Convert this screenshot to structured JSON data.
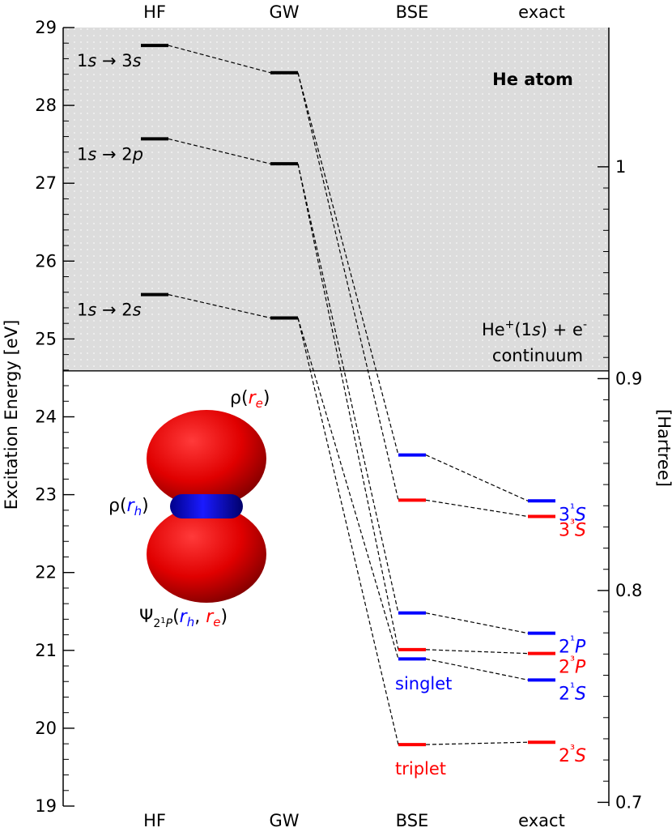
{
  "chart_data": {
    "type": "energy-level-diagram",
    "title": "He atom",
    "ylabel_left": "Excitation Energy [eV]",
    "ylabel_right": "[Hartree]",
    "ylim": [
      19,
      29
    ],
    "yticks_left": [
      19,
      20,
      21,
      22,
      23,
      24,
      25,
      26,
      27,
      28,
      29
    ],
    "yticks_right_hartree": [
      0.7,
      0.8,
      0.9,
      1
    ],
    "columns": [
      "HF",
      "GW",
      "BSE",
      "exact"
    ],
    "continuum_onset_ev": 24.59,
    "continuum_label": [
      "He+(1s) + e-",
      "continuum"
    ],
    "colors": {
      "singlet": "#0000ff",
      "triplet": "#ff0000",
      "neutral": "#000000",
      "shade": "#dcdcdc"
    },
    "series": [
      {
        "name": "HF",
        "levels": [
          {
            "id": "hf-3s",
            "energy": 28.77,
            "label": "1s → 3s"
          },
          {
            "id": "hf-2p",
            "energy": 27.57,
            "label": "1s → 2p"
          },
          {
            "id": "hf-2s",
            "energy": 25.57,
            "label": "1s → 2s"
          }
        ]
      },
      {
        "name": "GW",
        "levels": [
          {
            "id": "gw-3s",
            "energy": 28.42
          },
          {
            "id": "gw-2p",
            "energy": 27.25
          },
          {
            "id": "gw-2s",
            "energy": 25.27
          }
        ]
      },
      {
        "name": "BSE",
        "levels": [
          {
            "id": "bse-31S",
            "energy": 23.51,
            "spin": "singlet"
          },
          {
            "id": "bse-33S",
            "energy": 22.93,
            "spin": "triplet"
          },
          {
            "id": "bse-21P",
            "energy": 21.48,
            "spin": "singlet"
          },
          {
            "id": "bse-23P",
            "energy": 21.01,
            "spin": "triplet"
          },
          {
            "id": "bse-21S",
            "energy": 20.89,
            "spin": "singlet"
          },
          {
            "id": "bse-23S",
            "energy": 19.79,
            "spin": "triplet"
          }
        ]
      },
      {
        "name": "exact",
        "levels": [
          {
            "id": "ex-31S",
            "energy": 22.92,
            "spin": "singlet",
            "term": "3¹S"
          },
          {
            "id": "ex-33S",
            "energy": 22.72,
            "spin": "triplet",
            "term": "3³S"
          },
          {
            "id": "ex-21P",
            "energy": 21.22,
            "spin": "singlet",
            "term": "2¹P"
          },
          {
            "id": "ex-23P",
            "energy": 20.96,
            "spin": "triplet",
            "term": "2³P"
          },
          {
            "id": "ex-21S",
            "energy": 20.62,
            "spin": "singlet",
            "term": "2¹S"
          },
          {
            "id": "ex-23S",
            "energy": 19.82,
            "spin": "triplet",
            "term": "2³S"
          }
        ]
      }
    ],
    "connectors": [
      [
        "hf-3s",
        "gw-3s"
      ],
      [
        "hf-2p",
        "gw-2p"
      ],
      [
        "hf-2s",
        "gw-2s"
      ],
      [
        "gw-3s",
        "bse-31S"
      ],
      [
        "gw-3s",
        "bse-33S"
      ],
      [
        "gw-2p",
        "bse-21P"
      ],
      [
        "gw-2p",
        "bse-23P"
      ],
      [
        "gw-2s",
        "bse-21S"
      ],
      [
        "gw-2s",
        "bse-23S"
      ],
      [
        "bse-31S",
        "ex-31S"
      ],
      [
        "bse-33S",
        "ex-33S"
      ],
      [
        "bse-21P",
        "ex-21P"
      ],
      [
        "bse-23P",
        "ex-23P"
      ],
      [
        "bse-21S",
        "ex-21S"
      ],
      [
        "bse-23S",
        "ex-23S"
      ]
    ],
    "spin_labels": {
      "singlet": "singlet",
      "triplet": "triplet"
    },
    "inset": {
      "rho_e": "ρ(re)",
      "rho_h": "ρ(rh)",
      "wavefunction": "Ψ21P(rh, re)"
    }
  }
}
